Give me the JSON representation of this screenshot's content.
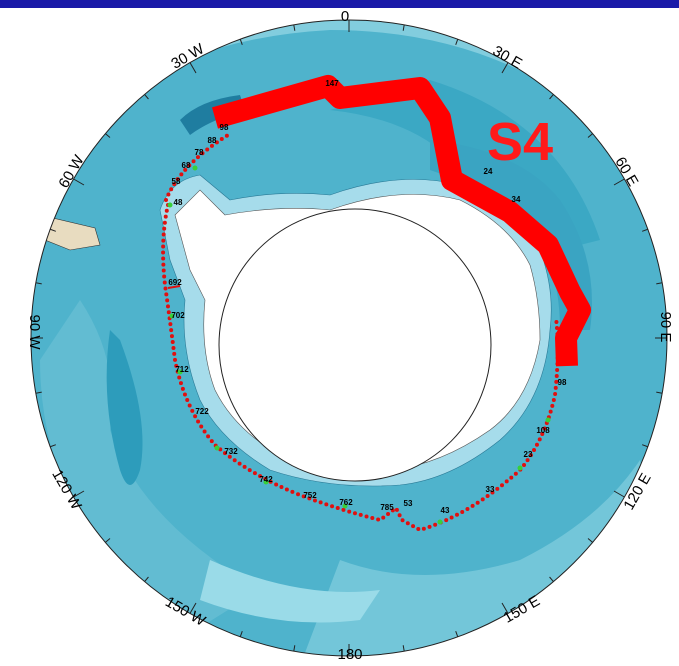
{
  "map": {
    "title": "S4",
    "longitude_labels": [
      "0",
      "30 E",
      "60 E",
      "90 E",
      "120 E",
      "150 E",
      "180",
      "150 W",
      "120 W",
      "90 W",
      "60 W",
      "30 W"
    ],
    "station_labels": [
      "147",
      "24",
      "34",
      "98",
      "88",
      "78",
      "68",
      "58",
      "48",
      "692",
      "702",
      "712",
      "722",
      "732",
      "742",
      "752",
      "762",
      "785",
      "53",
      "43",
      "33",
      "23",
      "108",
      "98"
    ]
  }
}
